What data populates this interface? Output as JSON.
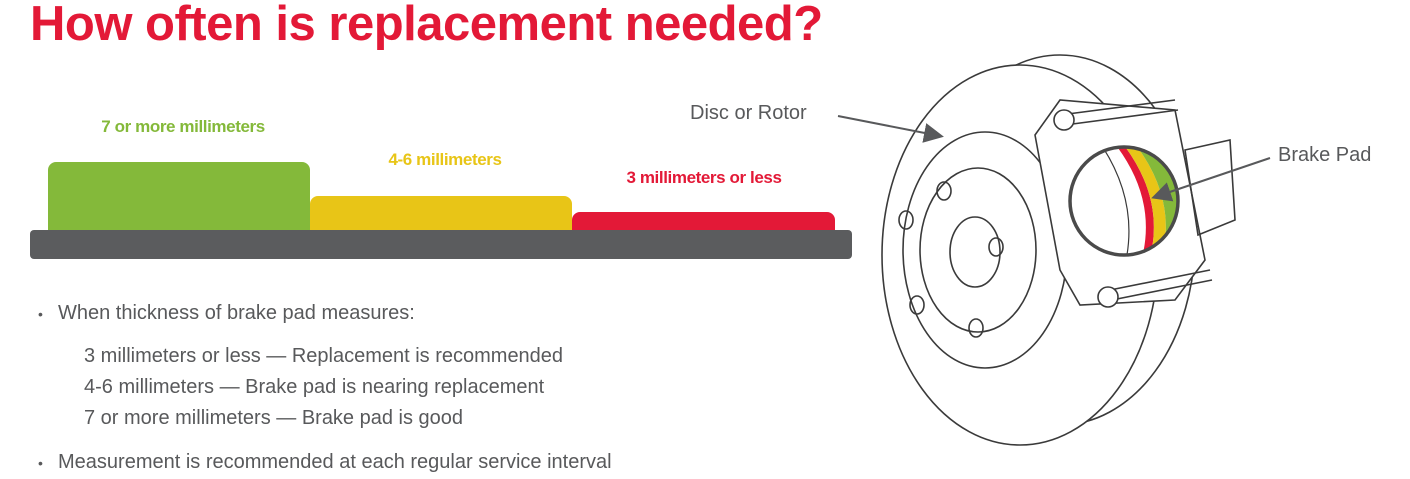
{
  "title": "How often is replacement needed?",
  "gauge": {
    "levels": [
      {
        "label": "7 or more millimeters",
        "color": "#84b93a"
      },
      {
        "label": "4-6 millimeters",
        "color": "#e8c517"
      },
      {
        "label": "3 millimeters or less",
        "color": "#e31937"
      }
    ],
    "base_color": "#5b5c5e"
  },
  "bullets": {
    "intro": "When thickness of brake pad measures:",
    "items": [
      "3 millimeters or less — Replacement is recommended",
      "4-6 millimeters — Brake pad is nearing replacement",
      "7 or more millimeters — Brake pad is good"
    ],
    "note": "Measurement is recommended at each regular service interval"
  },
  "diagram": {
    "disc_label": "Disc or Rotor",
    "pad_label": "Brake Pad"
  },
  "colors": {
    "accent": "#e31937",
    "text": "#58595b"
  }
}
